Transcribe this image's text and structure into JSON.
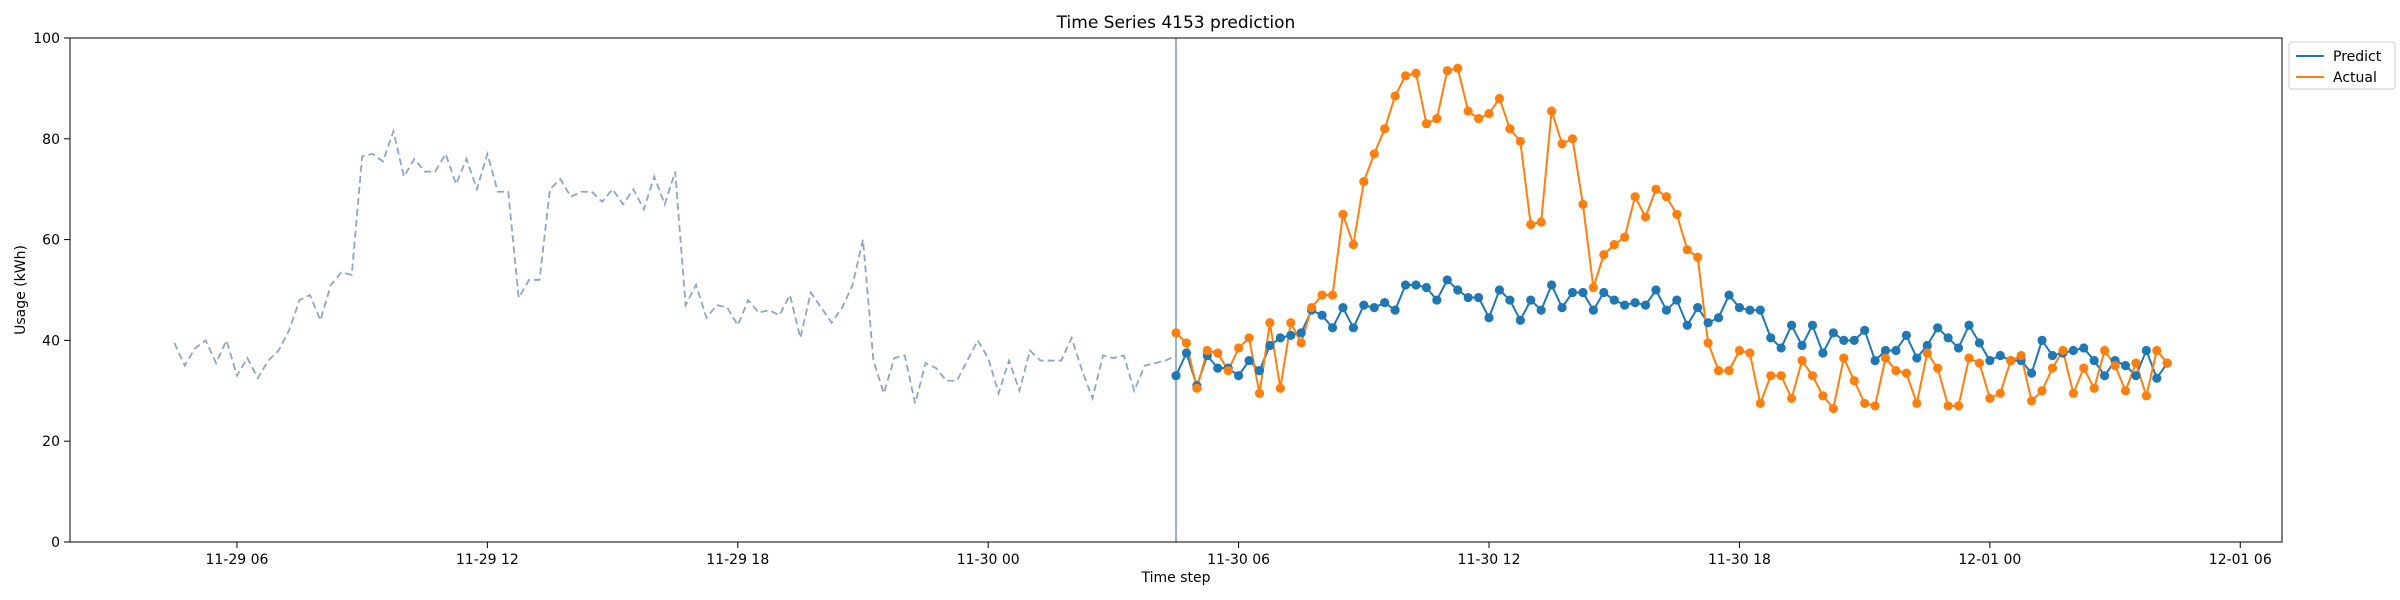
{
  "chart_data": {
    "type": "line",
    "title": "Time Series 4153 prediction",
    "xlabel": "Time step",
    "ylabel": "Usage (kWh)",
    "ylim": [
      0,
      100
    ],
    "yticks": [
      0,
      20,
      40,
      60,
      80,
      100
    ],
    "xlim": [
      "2022-11-29 02:00",
      "2022-12-01 07:00"
    ],
    "xticks": [
      {
        "value": "2022-11-29 06:00",
        "label": "11-29 06"
      },
      {
        "value": "2022-11-29 12:00",
        "label": "11-29 12"
      },
      {
        "value": "2022-11-29 18:00",
        "label": "11-29 18"
      },
      {
        "value": "2022-11-30 00:00",
        "label": "11-30 00"
      },
      {
        "value": "2022-11-30 06:00",
        "label": "11-30 06"
      },
      {
        "value": "2022-11-30 12:00",
        "label": "11-30 12"
      },
      {
        "value": "2022-11-30 18:00",
        "label": "11-30 18"
      },
      {
        "value": "2022-12-01 00:00",
        "label": "12-01 00"
      },
      {
        "value": "2022-12-01 06:00",
        "label": "12-01 06"
      }
    ],
    "grid": false,
    "legend_position": "top-right",
    "interval_minutes": 15,
    "forecast_start": "2022-11-30 04:30",
    "series": [
      {
        "name": "",
        "role": "history",
        "style": "dashed",
        "color": "#8da5c8",
        "start": "2022-11-29 04:30",
        "values": [
          39.5,
          35.0,
          38.5,
          40.0,
          35.5,
          40.0,
          33.0,
          36.5,
          32.5,
          36.0,
          38.0,
          42.0,
          48.0,
          49.0,
          44.0,
          51.0,
          53.5,
          53.0,
          76.5,
          77.0,
          75.5,
          81.5,
          72.5,
          76.0,
          73.5,
          73.5,
          77.0,
          71.0,
          76.0,
          70.0,
          77.0,
          69.5,
          69.5,
          48.5,
          52.0,
          52.0,
          70.0,
          72.0,
          68.5,
          69.5,
          69.5,
          67.5,
          70.0,
          67.0,
          70.0,
          66.0,
          72.5,
          67.0,
          73.5,
          47.0,
          51.0,
          44.5,
          47.0,
          46.5,
          43.0,
          48.0,
          45.5,
          46.0,
          45.0,
          49.0,
          40.5,
          49.5,
          46.5,
          43.5,
          46.5,
          51.0,
          60.0,
          36.0,
          29.5,
          36.5,
          37.0,
          27.5,
          35.5,
          34.5,
          32.0,
          32.0,
          36.0,
          40.0,
          36.5,
          29.5,
          36.0,
          30.0,
          38.0,
          36.0,
          36.0,
          36.0,
          40.5,
          34.0,
          28.5,
          37.0,
          36.5,
          37.0,
          30.0,
          35.0,
          35.5,
          36.0,
          37.0
        ]
      },
      {
        "name": "Predict",
        "role": "forecast",
        "color": "#1f77b4",
        "start": "2022-11-30 04:30",
        "values": [
          33.0,
          37.5,
          31.0,
          37.0,
          34.5,
          34.5,
          33.0,
          36.0,
          34.0,
          39.0,
          40.5,
          41.0,
          41.5,
          46.0,
          45.0,
          42.5,
          46.5,
          42.5,
          47.0,
          46.5,
          47.5,
          46.0,
          51.0,
          51.0,
          50.5,
          48.0,
          52.0,
          50.0,
          48.5,
          48.5,
          44.5,
          50.0,
          48.0,
          44.0,
          48.0,
          46.0,
          51.0,
          46.5,
          49.5,
          49.5,
          46.0,
          49.5,
          48.0,
          47.0,
          47.5,
          47.0,
          50.0,
          46.0,
          48.0,
          43.0,
          46.5,
          43.5,
          44.5,
          49.0,
          46.5,
          46.0,
          46.0,
          40.5,
          38.5,
          43.0,
          39.0,
          43.0,
          37.5,
          41.5,
          40.0,
          40.0,
          42.0,
          36.0,
          38.0,
          38.0,
          41.0,
          36.5,
          39.0,
          42.5,
          40.5,
          38.5,
          43.0,
          39.5,
          36.0,
          37.0,
          36.0,
          36.0,
          33.5,
          40.0,
          37.0,
          37.5,
          38.0,
          38.5,
          36.0,
          33.0,
          36.0,
          35.0,
          33.0,
          38.0,
          32.5,
          35.5
        ]
      },
      {
        "name": "Actual",
        "role": "actual",
        "color": "#ff7f0e",
        "start": "2022-11-30 04:30",
        "values": [
          41.5,
          39.5,
          30.5,
          38.0,
          37.5,
          34.0,
          38.5,
          40.5,
          29.5,
          43.5,
          30.5,
          43.5,
          39.5,
          46.5,
          49.0,
          49.0,
          65.0,
          59.0,
          71.5,
          77.0,
          82.0,
          88.5,
          92.5,
          93.0,
          83.0,
          84.0,
          93.5,
          94.0,
          85.5,
          84.0,
          85.0,
          88.0,
          82.0,
          79.5,
          63.0,
          63.5,
          85.5,
          79.0,
          80.0,
          67.0,
          50.5,
          57.0,
          59.0,
          60.5,
          68.5,
          64.5,
          70.0,
          68.5,
          65.0,
          58.0,
          56.5,
          39.5,
          34.0,
          34.0,
          38.0,
          37.5,
          27.5,
          33.0,
          33.0,
          28.5,
          36.0,
          33.0,
          29.0,
          26.5,
          36.5,
          32.0,
          27.5,
          27.0,
          36.5,
          34.0,
          33.5,
          27.5,
          37.5,
          34.5,
          27.0,
          27.0,
          36.5,
          35.5,
          28.5,
          29.5,
          36.0,
          37.0,
          28.0,
          30.0,
          34.5,
          38.0,
          29.5,
          34.5,
          30.5,
          38.0,
          35.0,
          30.0,
          35.5,
          29.0,
          38.0,
          35.5
        ]
      }
    ]
  }
}
